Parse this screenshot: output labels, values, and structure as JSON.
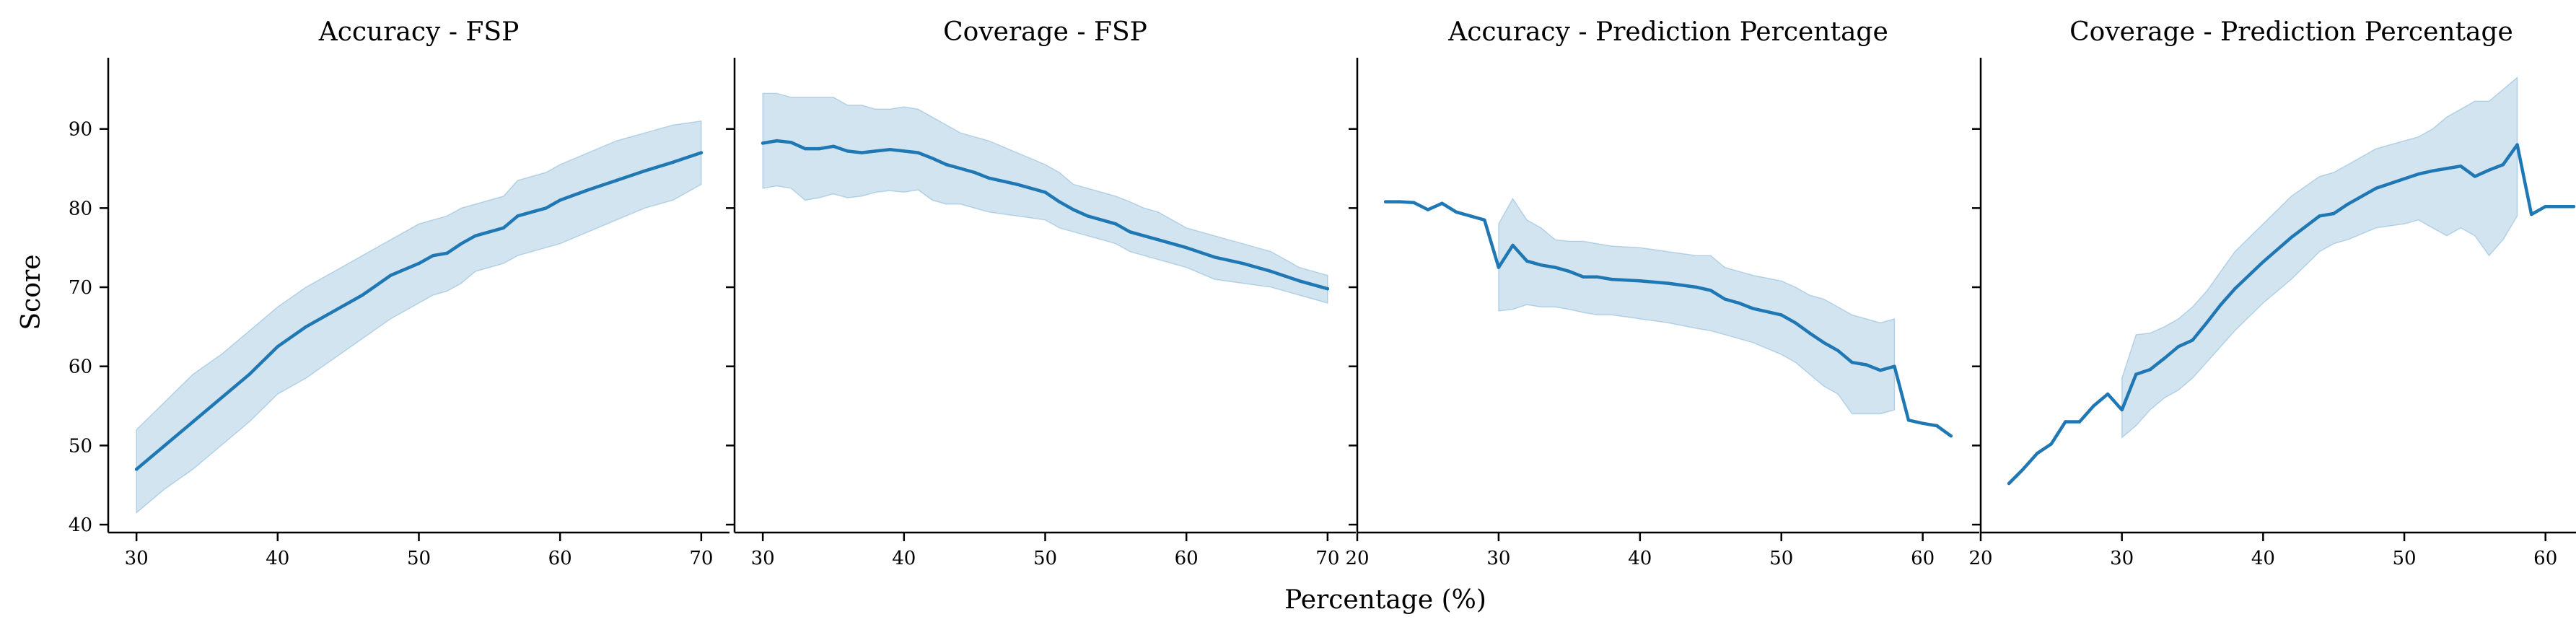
{
  "figure": {
    "xlabel": "Percentage (%)",
    "ylabel": "Score",
    "line_color": "#1f77b4",
    "band_color": "#1f77b4",
    "band_opacity": 0.2
  },
  "chart_data": [
    {
      "type": "line",
      "title": "Accuracy - FSP",
      "xlabel": "Percentage (%)",
      "ylabel": "Score",
      "xlim": [
        28,
        72
      ],
      "ylim": [
        39,
        99
      ],
      "xticks": [
        30,
        40,
        50,
        60,
        70
      ],
      "yticks": [
        40,
        50,
        60,
        70,
        80,
        90
      ],
      "show_yticklabels": true,
      "grid": false,
      "series": [
        {
          "x": [
            30,
            32,
            34,
            36,
            38,
            40,
            42,
            44,
            46,
            48,
            50,
            51,
            52,
            53,
            54,
            55,
            56,
            57,
            58,
            59,
            60,
            62,
            64,
            66,
            68,
            70
          ],
          "y": [
            47.0,
            50.0,
            53.0,
            56.0,
            59.0,
            62.5,
            65.0,
            67.0,
            69.0,
            71.5,
            73.0,
            74.0,
            74.3,
            75.5,
            76.5,
            77.0,
            77.5,
            79.0,
            79.5,
            80.0,
            81.0,
            82.3,
            83.5,
            84.7,
            85.8,
            87.0
          ],
          "lower": [
            41.5,
            44.5,
            47.0,
            50.0,
            53.0,
            56.5,
            58.5,
            61.0,
            63.5,
            66.0,
            68.0,
            69.0,
            69.5,
            70.5,
            72.0,
            72.5,
            73.0,
            74.0,
            74.5,
            75.0,
            75.5,
            77.0,
            78.5,
            80.0,
            81.0,
            83.0
          ],
          "upper": [
            52.0,
            55.5,
            59.0,
            61.5,
            64.5,
            67.5,
            70.0,
            72.0,
            74.0,
            76.0,
            78.0,
            78.5,
            79.0,
            80.0,
            80.5,
            81.0,
            81.5,
            83.5,
            84.0,
            84.5,
            85.5,
            87.0,
            88.5,
            89.5,
            90.5,
            91.0
          ]
        }
      ]
    },
    {
      "type": "line",
      "title": "Coverage - FSP",
      "xlabel": "Percentage (%)",
      "ylabel": "Score",
      "xlim": [
        28,
        72
      ],
      "ylim": [
        39,
        99
      ],
      "xticks": [
        30,
        40,
        50,
        60,
        70
      ],
      "yticks": [
        40,
        50,
        60,
        70,
        80,
        90
      ],
      "show_yticklabels": false,
      "grid": false,
      "series": [
        {
          "x": [
            30,
            31,
            32,
            33,
            34,
            35,
            36,
            37,
            38,
            39,
            40,
            41,
            42,
            43,
            44,
            45,
            46,
            48,
            50,
            51,
            52,
            53,
            54,
            55,
            56,
            57,
            58,
            59,
            60,
            62,
            64,
            66,
            68,
            70
          ],
          "y": [
            88.2,
            88.5,
            88.3,
            87.5,
            87.5,
            87.8,
            87.2,
            87.0,
            87.2,
            87.4,
            87.2,
            87.0,
            86.3,
            85.5,
            85.0,
            84.5,
            83.8,
            83.0,
            82.0,
            80.8,
            79.8,
            79.0,
            78.5,
            78.0,
            77.0,
            76.5,
            76.0,
            75.5,
            75.0,
            73.8,
            73.0,
            72.0,
            70.8,
            69.8
          ],
          "lower": [
            82.5,
            82.8,
            82.5,
            81.0,
            81.3,
            81.8,
            81.3,
            81.5,
            82.0,
            82.2,
            82.0,
            82.3,
            81.0,
            80.5,
            80.5,
            80.0,
            79.5,
            79.0,
            78.5,
            77.5,
            77.0,
            76.5,
            76.0,
            75.5,
            74.5,
            74.0,
            73.5,
            73.0,
            72.5,
            71.0,
            70.5,
            70.0,
            69.0,
            68.0
          ],
          "upper": [
            94.5,
            94.5,
            94.0,
            94.0,
            94.0,
            94.0,
            93.0,
            93.0,
            92.5,
            92.5,
            92.8,
            92.5,
            91.5,
            90.5,
            89.5,
            89.0,
            88.5,
            87.0,
            85.5,
            84.5,
            83.0,
            82.5,
            82.0,
            81.5,
            80.8,
            80.0,
            79.5,
            78.5,
            77.5,
            76.5,
            75.5,
            74.5,
            72.5,
            71.5
          ]
        }
      ]
    },
    {
      "type": "line",
      "title": "Accuracy - Prediction Percentage",
      "xlabel": "Percentage (%)",
      "ylabel": "Score",
      "xlim": [
        20,
        64
      ],
      "ylim": [
        39,
        99
      ],
      "xticks": [
        20,
        30,
        40,
        50,
        60
      ],
      "yticks": [
        40,
        50,
        60,
        70,
        80,
        90
      ],
      "show_yticklabels": false,
      "grid": false,
      "series": [
        {
          "x": [
            22,
            23,
            24,
            25,
            26,
            27,
            28,
            29,
            30,
            31,
            32,
            33,
            34,
            35,
            36,
            37,
            38,
            40,
            42,
            44,
            45,
            46,
            47,
            48,
            50,
            51,
            52,
            53,
            54,
            55,
            56,
            57,
            58,
            59,
            60,
            61,
            62
          ],
          "y": [
            80.8,
            80.8,
            80.7,
            79.8,
            80.6,
            79.5,
            79.0,
            78.5,
            72.5,
            75.3,
            73.3,
            72.8,
            72.5,
            72.0,
            71.3,
            71.3,
            71.0,
            70.8,
            70.5,
            70.0,
            69.6,
            68.5,
            68.0,
            67.3,
            66.5,
            65.5,
            64.2,
            63.0,
            62.0,
            60.5,
            60.2,
            59.5,
            60.0,
            53.2,
            52.8,
            52.5,
            51.2
          ],
          "lower": [
            null,
            null,
            null,
            null,
            null,
            null,
            null,
            null,
            67.0,
            67.2,
            67.8,
            67.5,
            67.5,
            67.2,
            66.8,
            66.5,
            66.5,
            66.0,
            65.5,
            64.8,
            64.5,
            64.0,
            63.5,
            63.0,
            61.5,
            60.5,
            59.0,
            57.5,
            56.5,
            54.0,
            54.0,
            54.0,
            54.5,
            null,
            null,
            null,
            null
          ],
          "upper": [
            null,
            null,
            null,
            null,
            null,
            null,
            null,
            null,
            78.0,
            81.2,
            78.5,
            77.5,
            76.0,
            75.8,
            75.8,
            75.5,
            75.2,
            75.0,
            74.5,
            74.0,
            74.0,
            72.5,
            72.0,
            71.5,
            70.8,
            70.0,
            69.0,
            68.5,
            67.5,
            66.5,
            66.0,
            65.5,
            66.0,
            null,
            null,
            null,
            null
          ]
        }
      ]
    },
    {
      "type": "line",
      "title": "Coverage - Prediction Percentage",
      "xlabel": "Percentage (%)",
      "ylabel": "Score",
      "xlim": [
        20,
        64
      ],
      "ylim": [
        39,
        99
      ],
      "xticks": [
        20,
        30,
        40,
        50,
        60
      ],
      "yticks": [
        40,
        50,
        60,
        70,
        80,
        90
      ],
      "show_yticklabels": false,
      "grid": false,
      "series": [
        {
          "x": [
            22,
            23,
            24,
            25,
            26,
            27,
            28,
            29,
            30,
            31,
            32,
            33,
            34,
            35,
            36,
            37,
            38,
            40,
            42,
            44,
            45,
            46,
            48,
            50,
            51,
            52,
            53,
            54,
            55,
            56,
            57,
            58,
            59,
            60,
            61,
            62
          ],
          "y": [
            45.2,
            47.0,
            49.0,
            50.2,
            53.0,
            53.0,
            55.0,
            56.5,
            54.5,
            59.0,
            59.6,
            61.0,
            62.5,
            63.3,
            65.5,
            67.8,
            69.8,
            73.2,
            76.3,
            79.0,
            79.3,
            80.5,
            82.5,
            83.7,
            84.3,
            84.7,
            85.0,
            85.3,
            84.0,
            84.8,
            85.5,
            88.0,
            79.2,
            80.2,
            80.2,
            80.2
          ],
          "lower": [
            null,
            null,
            null,
            null,
            null,
            null,
            null,
            null,
            51.0,
            52.5,
            54.5,
            56.0,
            57.0,
            58.5,
            60.5,
            62.5,
            64.5,
            68.0,
            71.0,
            74.5,
            75.5,
            76.0,
            77.5,
            78.0,
            78.5,
            77.5,
            76.5,
            77.5,
            76.5,
            74.0,
            76.0,
            79.0,
            null,
            null,
            null,
            null
          ],
          "upper": [
            null,
            null,
            null,
            null,
            null,
            null,
            null,
            null,
            58.5,
            64.0,
            64.2,
            65.0,
            66.0,
            67.5,
            69.5,
            72.0,
            74.5,
            78.0,
            81.5,
            84.0,
            84.5,
            85.5,
            87.5,
            88.5,
            89.0,
            90.0,
            91.5,
            92.5,
            93.5,
            93.5,
            95.0,
            96.5,
            null,
            null,
            null,
            null
          ]
        }
      ]
    }
  ]
}
